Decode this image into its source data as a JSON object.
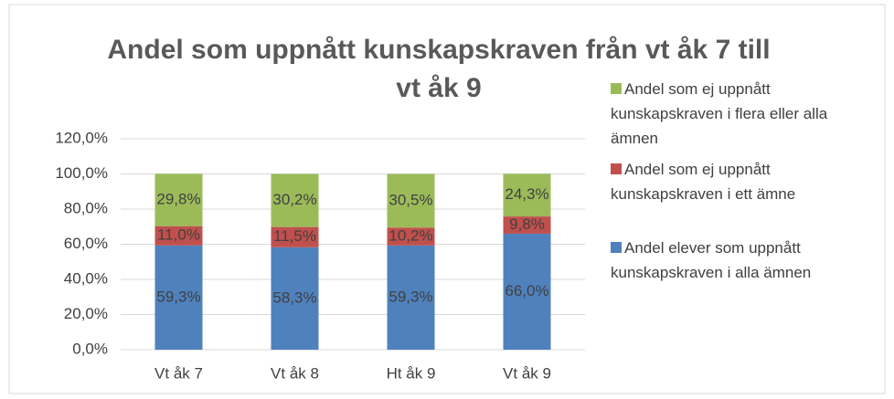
{
  "chart_data": {
    "type": "stacked_bar",
    "title": "Andel som uppnått kunskapskraven från vt åk 7 till vt åk 9",
    "categories": [
      "Vt åk 7",
      "Vt åk 8",
      "Ht åk 9",
      "Vt åk 9"
    ],
    "series": [
      {
        "name": "Andel elever som uppnått kunskapskraven i alla ämnen",
        "color": "#4f81bd",
        "values": [
          59.3,
          58.3,
          59.3,
          66.0
        ],
        "value_labels": [
          "59,3%",
          "58,3%",
          "59,3%",
          "66,0%"
        ]
      },
      {
        "name": "Andel som ej uppnått kunskapskraven i ett ämne",
        "color": "#c0504d",
        "values": [
          11.0,
          11.5,
          10.2,
          9.8
        ],
        "value_labels": [
          "11,0%",
          "11,5%",
          "10,2%",
          "9,8%"
        ]
      },
      {
        "name": "Andel som ej uppnått kunskapskraven i flera eller alla ämnen",
        "color": "#9bbb59",
        "values": [
          29.8,
          30.2,
          30.5,
          24.3
        ],
        "value_labels": [
          "29,8%",
          "30,2%",
          "30,5%",
          "24,3%"
        ]
      }
    ],
    "ylim": [
      0,
      120
    ],
    "yticks": [
      {
        "value": 0,
        "label": "0,0%"
      },
      {
        "value": 20,
        "label": "20,0%"
      },
      {
        "value": 40,
        "label": "40,0%"
      },
      {
        "value": 60,
        "label": "60,0%"
      },
      {
        "value": 80,
        "label": "80,0%"
      },
      {
        "value": 100,
        "label": "100,0%"
      },
      {
        "value": 120,
        "label": "120,0%"
      }
    ],
    "grid": true,
    "legend": "right"
  }
}
